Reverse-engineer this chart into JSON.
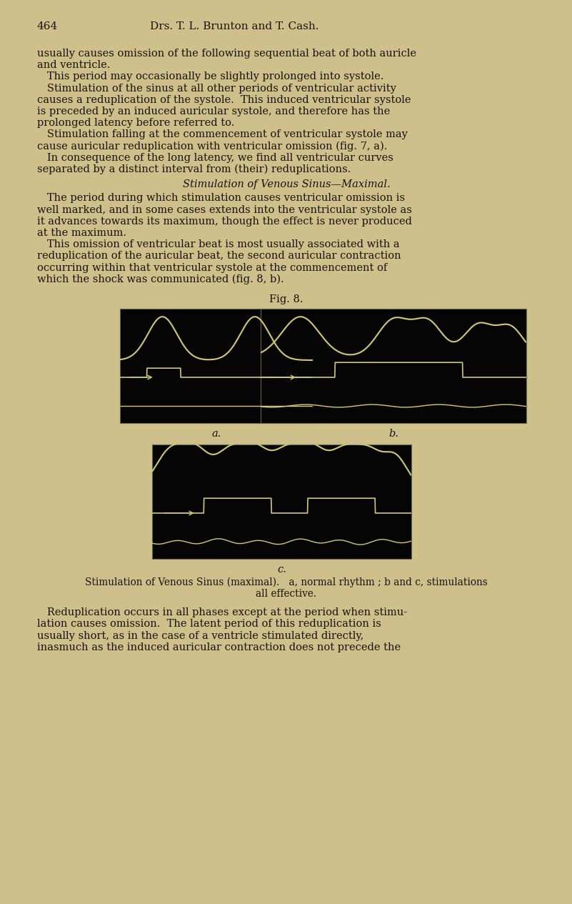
{
  "background_color": "#cdc08a",
  "text_color": "#1a1008",
  "plot_bg": "#050505",
  "curve_color": "#d4c870",
  "header_num": "464",
  "header_title": "Drs. T. L. Brunton and T. Cash.",
  "fig_title": "Fig. 8.",
  "fig_label_a": "a.",
  "fig_label_b": "b.",
  "fig_label_c": "c.",
  "caption_line1": "Stimulation of Venous Sinus (maximal).   a, normal rhythm ; b and c, stimulations",
  "caption_line2": "all effective.",
  "body1": [
    "usually causes omission of the following sequential beat of both auricle",
    "and ventricle.",
    "   This period may occasionally be slightly prolonged into systole.",
    "   Stimulation of the sinus at all other periods of ventricular activity",
    "causes a reduplication of the systole.  This induced ventricular systole",
    "is preceded by an induced auricular systole, and therefore has the",
    "prolonged latency before referred to.",
    "   Stimulation falling at the commencement of ventricular systole may",
    "cause auricular reduplication with ventricular omission (fig. 7, a).",
    "   In consequence of the long latency, we find all ventricular curves",
    "separated by a distinct interval from (their) reduplications."
  ],
  "italic_heading": "Stimulation of Venous Sinus—Maximal.",
  "body2": [
    "   The period during which stimulation causes ventricular omission is",
    "well marked, and in some cases extends into the ventricular systole as",
    "it advances towards its maximum, though the effect is never produced",
    "at the maximum.",
    "   This omission of ventricular beat is most usually associated with a",
    "reduplication of the auricular beat, the second auricular contraction",
    "occurring within that ventricular systole at the commencement of",
    "which the shock was communicated (fig. 8, b)."
  ],
  "body3": [
    "   Reduplication occurs in all phases except at the period when stimu-",
    "lation causes omission.  The latent period of this reduplication is",
    "usually short, as in the case of a ventricle stimulated directly,",
    "inasmuch as the induced auricular contraction does not precede the"
  ]
}
